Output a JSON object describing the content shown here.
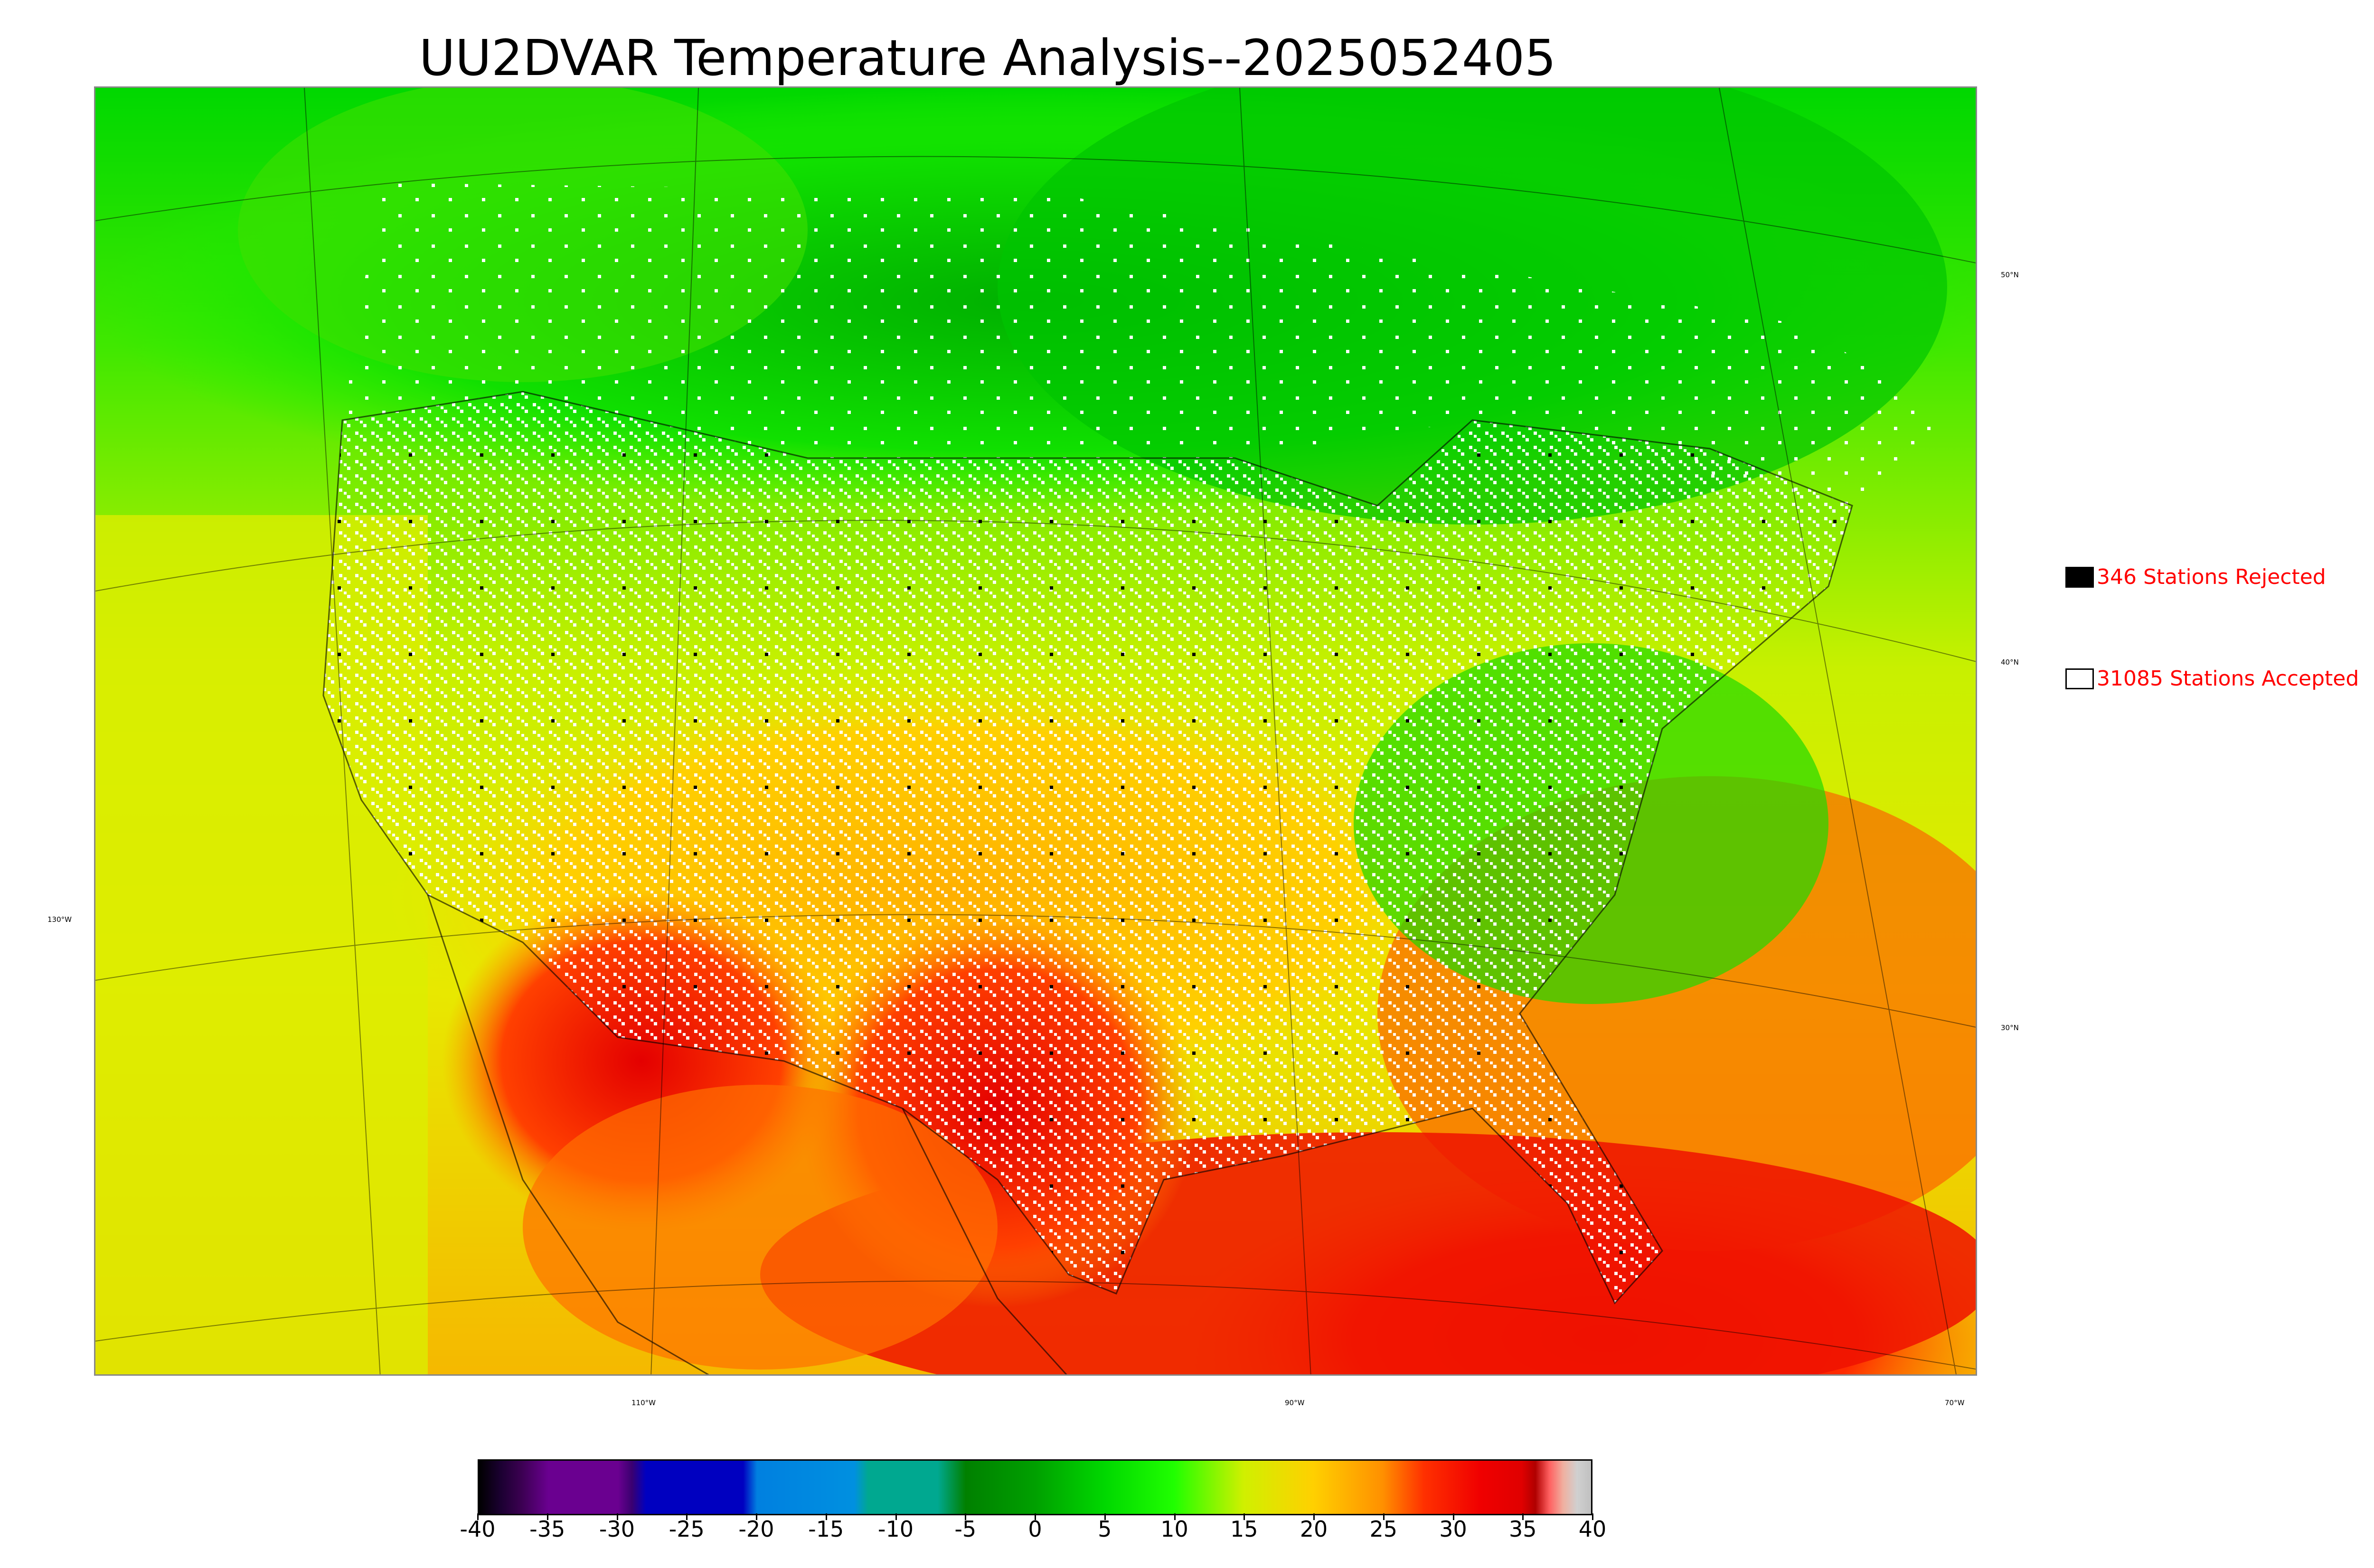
{
  "title": "UU2DVAR Temperature Analysis--2025052405",
  "map": {
    "lat_labels": [
      "50°N",
      "40°N",
      "30°N"
    ],
    "lon_labels_bottom": [
      "110°W",
      "90°W",
      "70°W"
    ],
    "lon_label_left": "130°W"
  },
  "legend": {
    "rejected": {
      "label": "346 Stations Rejected",
      "swatch_color": "#000000"
    },
    "accepted": {
      "label": "31085 Stations Accepted",
      "swatch_color": "#ffffff"
    },
    "text_color": "#ff0000"
  },
  "colorbar": {
    "ticks": [
      "-40",
      "-35",
      "-30",
      "-25",
      "-20",
      "-15",
      "-10",
      "-5",
      "0",
      "5",
      "10",
      "15",
      "20",
      "25",
      "30",
      "35",
      "40"
    ],
    "min": -40,
    "max": 40,
    "stops": [
      {
        "v": -40,
        "c": "#000000"
      },
      {
        "v": -38.5,
        "c": "#1a0030"
      },
      {
        "v": -37,
        "c": "#3a0050"
      },
      {
        "v": -35,
        "c": "#6a0090"
      },
      {
        "v": -30,
        "c": "#6a0090"
      },
      {
        "v": -29,
        "c": "#3a0070"
      },
      {
        "v": -28,
        "c": "#0000c0"
      },
      {
        "v": -21,
        "c": "#0000c0"
      },
      {
        "v": -20,
        "c": "#0080e0"
      },
      {
        "v": -13,
        "c": "#0090e0"
      },
      {
        "v": -12,
        "c": "#00a890"
      },
      {
        "v": -7,
        "c": "#00a890"
      },
      {
        "v": -5,
        "c": "#008000"
      },
      {
        "v": 0,
        "c": "#00a000"
      },
      {
        "v": 5,
        "c": "#00d800"
      },
      {
        "v": 10,
        "c": "#20ff00"
      },
      {
        "v": 15,
        "c": "#d0f000"
      },
      {
        "v": 20,
        "c": "#ffd000"
      },
      {
        "v": 25,
        "c": "#ff9000"
      },
      {
        "v": 28,
        "c": "#ff3000"
      },
      {
        "v": 32,
        "c": "#f00000"
      },
      {
        "v": 35,
        "c": "#e00000"
      },
      {
        "v": 36,
        "c": "#b00000"
      },
      {
        "v": 37,
        "c": "#ff6060"
      },
      {
        "v": 38,
        "c": "#f0b0a0"
      },
      {
        "v": 39,
        "c": "#d0d0d0"
      },
      {
        "v": 40,
        "c": "#c0c0c0"
      }
    ]
  }
}
